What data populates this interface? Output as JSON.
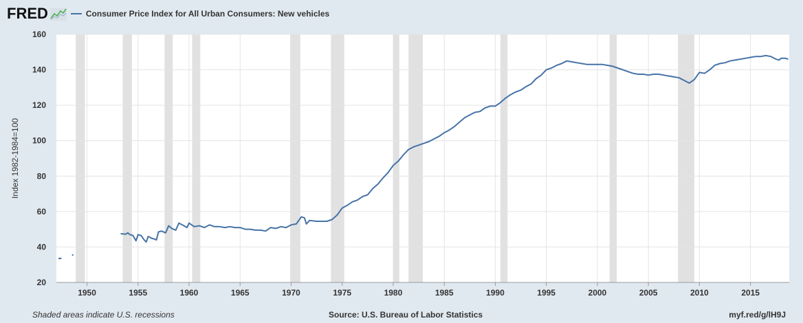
{
  "header": {
    "logo_text": "FRED",
    "logo_icon": "fred-graph-icon"
  },
  "colors": {
    "background": "#e1e9f0",
    "plot_background": "#ffffff",
    "series": "#4572a7",
    "recession": "#e1e1e1",
    "grid": "#e4e4e4"
  },
  "footer": {
    "note": "Shaded areas indicate U.S. recessions",
    "source": "Source: U.S. Bureau of Labor Statistics",
    "link": "myf.red/g/lH9J"
  },
  "chart_data": {
    "type": "line",
    "title": "",
    "xlabel": "",
    "ylabel": "Index 1982-1984=100",
    "xlim": [
      1947.0,
      2018.8
    ],
    "ylim": [
      20,
      160
    ],
    "yticks": [
      20,
      40,
      60,
      80,
      100,
      120,
      140,
      160
    ],
    "xticks": [
      1950,
      1955,
      1960,
      1965,
      1970,
      1975,
      1980,
      1985,
      1990,
      1995,
      2000,
      2005,
      2010,
      2015
    ],
    "grid": true,
    "legend": "top-left",
    "recessions": [
      [
        1948.9,
        1949.8
      ],
      [
        1953.5,
        1954.4
      ],
      [
        1957.6,
        1958.4
      ],
      [
        1960.3,
        1961.1
      ],
      [
        1969.9,
        1970.9
      ],
      [
        1973.9,
        1975.2
      ],
      [
        1980.0,
        1980.6
      ],
      [
        1981.5,
        1982.9
      ],
      [
        1990.5,
        1991.2
      ],
      [
        2001.2,
        2001.9
      ],
      [
        2007.9,
        2009.5
      ]
    ],
    "series": [
      {
        "name": "Consumer Price Index for All Urban Consumers: New vehicles",
        "segments": [
          [
            [
              1947.2,
              33.5
            ],
            [
              1947.5,
              33.6
            ]
          ],
          [
            [
              1948.6,
              35.5
            ]
          ],
          [
            [
              1953.3,
              47.5
            ],
            [
              1953.8,
              47.3
            ],
            [
              1954.0,
              48.0
            ],
            [
              1954.2,
              47.0
            ],
            [
              1954.5,
              46.5
            ],
            [
              1954.8,
              43.5
            ],
            [
              1955.0,
              47.0
            ],
            [
              1955.3,
              46.5
            ],
            [
              1955.6,
              44.0
            ],
            [
              1955.8,
              42.8
            ],
            [
              1956.0,
              46.0
            ],
            [
              1956.3,
              45.0
            ],
            [
              1956.6,
              44.5
            ],
            [
              1956.8,
              44.0
            ],
            [
              1957.0,
              48.5
            ],
            [
              1957.3,
              49.0
            ],
            [
              1957.7,
              48.0
            ],
            [
              1958.0,
              52.0
            ],
            [
              1958.3,
              50.5
            ],
            [
              1958.7,
              49.5
            ],
            [
              1959.0,
              53.5
            ],
            [
              1959.5,
              52.0
            ],
            [
              1959.8,
              51.0
            ],
            [
              1960.0,
              53.5
            ],
            [
              1960.5,
              51.5
            ],
            [
              1961.0,
              52.0
            ],
            [
              1961.5,
              51.0
            ],
            [
              1962.0,
              52.5
            ],
            [
              1962.5,
              51.5
            ],
            [
              1963.0,
              51.5
            ],
            [
              1963.5,
              51.0
            ],
            [
              1964.0,
              51.5
            ],
            [
              1964.5,
              51.0
            ],
            [
              1965.0,
              51.0
            ],
            [
              1965.5,
              50.0
            ],
            [
              1966.0,
              50.0
            ],
            [
              1966.5,
              49.5
            ],
            [
              1967.0,
              49.5
            ],
            [
              1967.5,
              49.0
            ],
            [
              1968.0,
              51.0
            ],
            [
              1968.5,
              50.5
            ],
            [
              1969.0,
              51.5
            ],
            [
              1969.5,
              51.0
            ],
            [
              1970.0,
              52.5
            ],
            [
              1970.5,
              53.0
            ],
            [
              1971.0,
              57.0
            ],
            [
              1971.3,
              56.5
            ],
            [
              1971.5,
              53.0
            ],
            [
              1971.8,
              55.0
            ],
            [
              1972.5,
              54.5
            ],
            [
              1973.0,
              54.5
            ],
            [
              1973.5,
              54.5
            ],
            [
              1974.0,
              55.5
            ],
            [
              1974.5,
              58.0
            ],
            [
              1975.0,
              62.0
            ],
            [
              1975.5,
              63.5
            ],
            [
              1976.0,
              65.5
            ],
            [
              1976.5,
              66.5
            ],
            [
              1977.0,
              68.5
            ],
            [
              1977.5,
              69.5
            ],
            [
              1978.0,
              73.0
            ],
            [
              1978.5,
              75.5
            ],
            [
              1979.0,
              79.0
            ],
            [
              1979.5,
              82.0
            ],
            [
              1980.0,
              86.0
            ],
            [
              1980.5,
              88.5
            ],
            [
              1981.0,
              92.0
            ],
            [
              1981.5,
              95.0
            ],
            [
              1982.0,
              96.5
            ],
            [
              1982.5,
              97.5
            ],
            [
              1983.0,
              98.5
            ],
            [
              1983.5,
              99.5
            ],
            [
              1984.0,
              101.0
            ],
            [
              1984.5,
              102.5
            ],
            [
              1985.0,
              104.5
            ],
            [
              1985.5,
              106.0
            ],
            [
              1986.0,
              108.0
            ],
            [
              1986.5,
              110.5
            ],
            [
              1987.0,
              113.0
            ],
            [
              1987.5,
              114.5
            ],
            [
              1988.0,
              116.0
            ],
            [
              1988.5,
              116.5
            ],
            [
              1989.0,
              118.5
            ],
            [
              1989.5,
              119.5
            ],
            [
              1990.0,
              119.5
            ],
            [
              1990.5,
              121.5
            ],
            [
              1991.0,
              124.0
            ],
            [
              1991.5,
              126.0
            ],
            [
              1992.0,
              127.5
            ],
            [
              1992.5,
              128.5
            ],
            [
              1993.0,
              130.5
            ],
            [
              1993.5,
              132.0
            ],
            [
              1994.0,
              135.0
            ],
            [
              1994.5,
              137.0
            ],
            [
              1995.0,
              140.0
            ],
            [
              1995.5,
              141.0
            ],
            [
              1996.0,
              142.5
            ],
            [
              1996.5,
              143.5
            ],
            [
              1997.0,
              145.0
            ],
            [
              1997.5,
              144.5
            ],
            [
              1998.0,
              144.0
            ],
            [
              1998.5,
              143.5
            ],
            [
              1999.0,
              143.0
            ],
            [
              1999.5,
              143.0
            ],
            [
              2000.0,
              143.0
            ],
            [
              2000.5,
              143.0
            ],
            [
              2001.0,
              142.5
            ],
            [
              2001.5,
              142.0
            ],
            [
              2002.0,
              141.0
            ],
            [
              2002.5,
              140.0
            ],
            [
              2003.0,
              139.0
            ],
            [
              2003.5,
              138.0
            ],
            [
              2004.0,
              137.5
            ],
            [
              2004.5,
              137.5
            ],
            [
              2005.0,
              137.0
            ],
            [
              2005.5,
              137.5
            ],
            [
              2006.0,
              137.5
            ],
            [
              2006.5,
              137.0
            ],
            [
              2007.0,
              136.5
            ],
            [
              2007.5,
              136.0
            ],
            [
              2008.0,
              135.5
            ],
            [
              2008.5,
              134.0
            ],
            [
              2009.0,
              132.5
            ],
            [
              2009.5,
              134.5
            ],
            [
              2010.0,
              138.5
            ],
            [
              2010.5,
              138.0
            ],
            [
              2011.0,
              140.0
            ],
            [
              2011.5,
              142.5
            ],
            [
              2012.0,
              143.5
            ],
            [
              2012.5,
              144.0
            ],
            [
              2013.0,
              145.0
            ],
            [
              2013.5,
              145.5
            ],
            [
              2014.0,
              146.0
            ],
            [
              2014.5,
              146.5
            ],
            [
              2015.0,
              147.0
            ],
            [
              2015.5,
              147.5
            ],
            [
              2016.0,
              147.5
            ],
            [
              2016.5,
              148.0
            ],
            [
              2017.0,
              147.5
            ],
            [
              2017.5,
              146.0
            ],
            [
              2017.8,
              145.5
            ],
            [
              2018.0,
              146.5
            ],
            [
              2018.4,
              146.5
            ],
            [
              2018.7,
              146.0
            ]
          ]
        ]
      }
    ]
  }
}
